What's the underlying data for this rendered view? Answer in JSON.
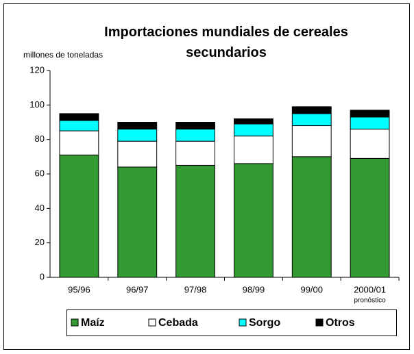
{
  "chart_data": {
    "type": "stacked_bar",
    "title": "Importaciones mundiales de cereales secundarios",
    "y_label": "millones de toneladas",
    "categories": [
      "95/96",
      "96/97",
      "97/98",
      "98/99",
      "99/00",
      "2000/01"
    ],
    "annotation": "pronóstico",
    "series": [
      {
        "name": "Maíz",
        "color": "#339933",
        "values": [
          71,
          64,
          65,
          66,
          70,
          69
        ]
      },
      {
        "name": "Cebada",
        "color": "#ffffff",
        "values": [
          14,
          15,
          14,
          16,
          18,
          17
        ]
      },
      {
        "name": "Sorgo",
        "color": "#00ffff",
        "values": [
          6,
          7,
          7,
          7,
          7,
          7
        ]
      },
      {
        "name": "Otros",
        "color": "#000000",
        "values": [
          4,
          4,
          4,
          3,
          4,
          4
        ]
      }
    ],
    "ylim": [
      0,
      120
    ],
    "yticks": [
      0,
      20,
      40,
      60,
      80,
      100,
      120
    ],
    "grid": false
  }
}
